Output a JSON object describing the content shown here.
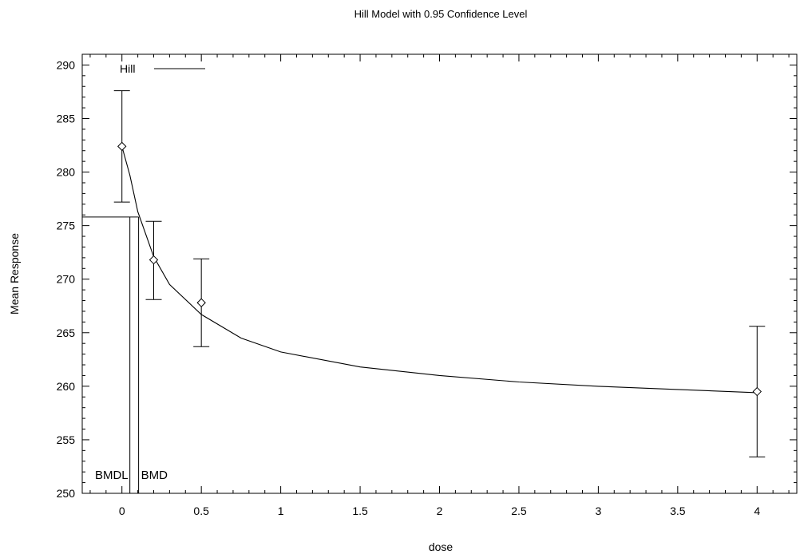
{
  "chart_data": {
    "type": "scatter",
    "title": "Hill Model with 0.95 Confidence Level",
    "xlabel": "dose",
    "ylabel": "Mean Response",
    "xlim": [
      -0.25,
      4.25
    ],
    "ylim": [
      250,
      291
    ],
    "xticks": [
      0,
      0.5,
      1,
      1.5,
      2,
      2.5,
      3,
      3.5,
      4
    ],
    "xtick_labels": [
      "0",
      "0.5",
      "1",
      "1.5",
      "2",
      "2.5",
      "3",
      "3.5",
      "4"
    ],
    "yticks": [
      250,
      255,
      260,
      265,
      270,
      275,
      280,
      285,
      290
    ],
    "ytick_labels": [
      "250",
      "255",
      "260",
      "265",
      "270",
      "275",
      "280",
      "285",
      "290"
    ],
    "grid": false,
    "legend": {
      "position": "top-left",
      "entries": [
        "Hill"
      ]
    },
    "points": [
      {
        "x": 0,
        "y": 282.4,
        "lower": 277.2,
        "upper": 287.6
      },
      {
        "x": 0.2,
        "y": 271.8,
        "lower": 268.1,
        "upper": 275.4
      },
      {
        "x": 0.5,
        "y": 267.8,
        "lower": 263.7,
        "upper": 271.9
      },
      {
        "x": 4,
        "y": 259.5,
        "lower": 253.4,
        "upper": 265.6
      }
    ],
    "model_curve": [
      {
        "x": 0,
        "y": 282.4
      },
      {
        "x": 0.05,
        "y": 279.7
      },
      {
        "x": 0.1,
        "y": 276.3
      },
      {
        "x": 0.2,
        "y": 272.1
      },
      {
        "x": 0.3,
        "y": 269.5
      },
      {
        "x": 0.5,
        "y": 266.7
      },
      {
        "x": 0.75,
        "y": 264.5
      },
      {
        "x": 1,
        "y": 263.2
      },
      {
        "x": 1.5,
        "y": 261.8
      },
      {
        "x": 2,
        "y": 261.0
      },
      {
        "x": 2.5,
        "y": 260.4
      },
      {
        "x": 3,
        "y": 260.0
      },
      {
        "x": 3.5,
        "y": 259.7
      },
      {
        "x": 4,
        "y": 259.4
      }
    ],
    "benchmark": {
      "bmr_response": 275.8,
      "bmdl": 0.05,
      "bmd": 0.105,
      "bmdl_label": "BMDL",
      "bmd_label": "BMD"
    }
  }
}
